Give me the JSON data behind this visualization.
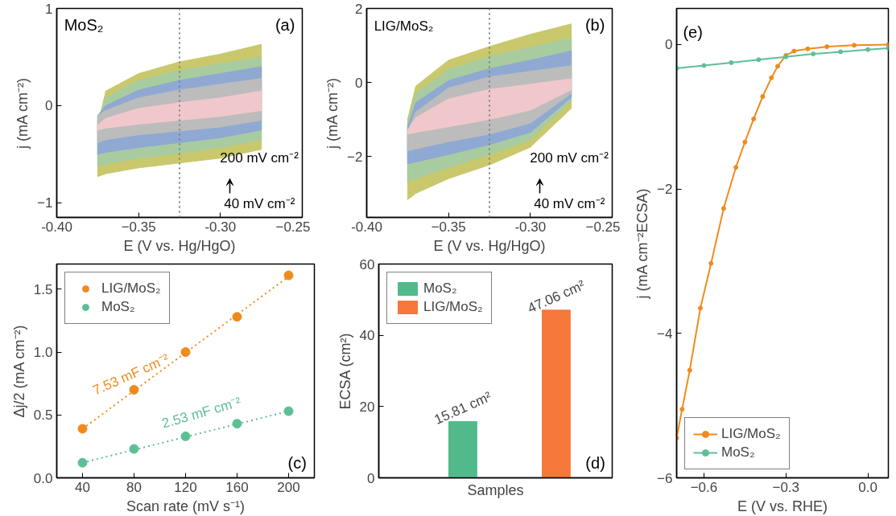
{
  "chart_data": [
    {
      "type": "area",
      "xlabel": "E (V vs. Hg/HgO)",
      "ylabel": "j (mA cm⁻²)",
      "xlim": [
        -0.4,
        -0.25
      ],
      "ylim": [
        -1.15,
        1
      ],
      "xticks": [
        {
          "value": -0.4,
          "label": "-0.40"
        },
        -0.35,
        {
          "value": -0.3,
          "label": "-0.30"
        },
        -0.25
      ],
      "yticks": [
        -1,
        0,
        1
      ],
      "series": [
        {
          "color": "#c9c86c",
          "x": [
            -0.375,
            -0.37,
            -0.35,
            -0.325,
            -0.3,
            -0.275,
            -0.275,
            -0.3,
            -0.325,
            -0.35,
            -0.37,
            -0.375
          ],
          "values": [
            -0.2,
            0.15,
            0.33,
            0.45,
            0.53,
            0.63,
            -0.45,
            -0.54,
            -0.59,
            -0.64,
            -0.7,
            -0.73
          ]
        },
        {
          "color": "#a9cba0",
          "x": [
            -0.375,
            -0.37,
            -0.35,
            -0.325,
            -0.3,
            -0.275,
            -0.275,
            -0.3,
            -0.325,
            -0.35,
            -0.37,
            -0.375
          ],
          "values": [
            -0.15,
            0.08,
            0.26,
            0.36,
            0.43,
            0.5,
            -0.35,
            -0.43,
            -0.49,
            -0.54,
            -0.6,
            -0.62
          ]
        },
        {
          "color": "#8fa9d3",
          "x": [
            -0.375,
            -0.37,
            -0.35,
            -0.325,
            -0.3,
            -0.275,
            -0.275,
            -0.3,
            -0.325,
            -0.35,
            -0.37,
            -0.375
          ],
          "values": [
            -0.1,
            0.0,
            0.16,
            0.26,
            0.33,
            0.4,
            -0.25,
            -0.33,
            -0.38,
            -0.43,
            -0.48,
            -0.5
          ]
        },
        {
          "color": "#bcbcbc",
          "x": [
            -0.375,
            -0.37,
            -0.35,
            -0.325,
            -0.3,
            -0.275,
            -0.275,
            -0.3,
            -0.325,
            -0.35,
            -0.37,
            -0.375
          ],
          "values": [
            -0.1,
            -0.05,
            0.08,
            0.16,
            0.22,
            0.28,
            -0.15,
            -0.22,
            -0.26,
            -0.3,
            -0.35,
            -0.38
          ]
        },
        {
          "color": "#f0c8cc",
          "x": [
            -0.375,
            -0.37,
            -0.35,
            -0.325,
            -0.3,
            -0.275,
            -0.275,
            -0.3,
            -0.325,
            -0.35,
            -0.37,
            -0.375
          ],
          "values": [
            -0.2,
            -0.13,
            -0.03,
            0.03,
            0.08,
            0.15,
            -0.05,
            -0.11,
            -0.15,
            -0.19,
            -0.23,
            -0.25
          ]
        }
      ],
      "ref_lines": [
        {
          "axis": "x",
          "value": -0.325,
          "color": "#808080",
          "line_style": "dotted"
        }
      ],
      "annotations": [
        "MoS₂",
        "(a)",
        "200 mV cm⁻²",
        "40 mV cm⁻²"
      ]
    },
    {
      "type": "area",
      "xlabel": "E (V vs. Hg/HgO)",
      "ylabel": "j (mA cm⁻²)",
      "xlim": [
        -0.4,
        -0.25
      ],
      "ylim": [
        -3.65,
        2
      ],
      "xticks": [
        {
          "value": -0.4,
          "label": "-0.40"
        },
        -0.35,
        {
          "value": -0.3,
          "label": "-0.30"
        },
        -0.25
      ],
      "yticks": [
        -2,
        0,
        2
      ],
      "series": [
        {
          "color": "#c9c86c",
          "x": [
            -0.375,
            -0.37,
            -0.35,
            -0.325,
            -0.3,
            -0.275,
            -0.275,
            -0.3,
            -0.325,
            -0.35,
            -0.37,
            -0.375
          ],
          "values": [
            -1.0,
            -0.1,
            0.6,
            0.97,
            1.3,
            1.58,
            -0.7,
            -1.75,
            -2.23,
            -2.6,
            -3.0,
            -3.17
          ]
        },
        {
          "color": "#a9cba0",
          "x": [
            -0.375,
            -0.37,
            -0.35,
            -0.325,
            -0.3,
            -0.275,
            -0.275,
            -0.3,
            -0.325,
            -0.35,
            -0.37,
            -0.375
          ],
          "values": [
            -1.1,
            -0.3,
            0.35,
            0.7,
            0.95,
            1.2,
            -0.5,
            -1.55,
            -1.95,
            -2.3,
            -2.6,
            -2.7
          ]
        },
        {
          "color": "#8fa9d3",
          "x": [
            -0.375,
            -0.37,
            -0.35,
            -0.325,
            -0.3,
            -0.275,
            -0.275,
            -0.3,
            -0.325,
            -0.35,
            -0.37,
            -0.375
          ],
          "values": [
            -1.2,
            -0.55,
            0.05,
            0.37,
            0.6,
            0.85,
            -0.4,
            -1.35,
            -1.68,
            -1.95,
            -2.15,
            -2.2
          ]
        },
        {
          "color": "#bcbcbc",
          "x": [
            -0.375,
            -0.37,
            -0.35,
            -0.325,
            -0.3,
            -0.275,
            -0.275,
            -0.3,
            -0.325,
            -0.35,
            -0.37,
            -0.375
          ],
          "values": [
            -1.3,
            -0.8,
            -0.15,
            0.15,
            0.3,
            0.45,
            -0.3,
            -1.1,
            -1.4,
            -1.6,
            -1.8,
            -1.85
          ]
        },
        {
          "color": "#f0c8cc",
          "x": [
            -0.375,
            -0.37,
            -0.35,
            -0.325,
            -0.3,
            -0.275,
            -0.275,
            -0.3,
            -0.325,
            -0.35,
            -0.37,
            -0.375
          ],
          "values": [
            -1.3,
            -0.95,
            -0.45,
            -0.19,
            -0.05,
            0.1,
            -0.2,
            -0.75,
            -1.0,
            -1.2,
            -1.35,
            -1.4
          ]
        }
      ],
      "ref_lines": [
        {
          "axis": "x",
          "value": -0.325,
          "color": "#808080",
          "line_style": "dotted"
        }
      ],
      "annotations": [
        "LIG/MoS₂",
        "(b)",
        "200 mV cm⁻²",
        "40 mV cm⁻²"
      ]
    },
    {
      "type": "scatter",
      "xlabel": "Scan rate (mV s⁻¹)",
      "ylabel": "Δj/2 (mA cm⁻²)",
      "xlim": [
        20,
        220
      ],
      "ylim": [
        0,
        1.7
      ],
      "xticks": [
        40,
        80,
        120,
        160,
        200
      ],
      "yticks": [
        {
          "value": 0,
          "label": "0.0"
        },
        0.5,
        {
          "value": 1,
          "label": "1.0"
        },
        1.5
      ],
      "x": [
        40,
        80,
        120,
        160,
        200
      ],
      "legend": "top left",
      "series": [
        {
          "name": "LIG/MoS₂",
          "color": "#f08a1c",
          "values": [
            0.39,
            0.7,
            1.0,
            1.28,
            1.61
          ]
        },
        {
          "name": "MoS₂",
          "color": "#5dbf95",
          "values": [
            0.12,
            0.23,
            0.33,
            0.43,
            0.53
          ]
        },
        {
          "type": "line",
          "line_style": "dotted",
          "color": "#f08a1c",
          "x": [
            40,
            200
          ],
          "values": [
            0.39,
            1.6
          ]
        },
        {
          "type": "line",
          "line_style": "dotted",
          "color": "#5dbf95",
          "x": [
            40,
            200
          ],
          "values": [
            0.12,
            0.53
          ]
        }
      ],
      "annotations": [
        "7.53 mF cm⁻²",
        "2.53 mF cm⁻²",
        "(c)"
      ]
    },
    {
      "type": "bar",
      "xlabel": "Samples",
      "ylabel": "ECSA (cm²)",
      "ylim": [
        0,
        60
      ],
      "yticks": [
        0,
        20,
        40,
        60
      ],
      "categories": [
        null,
        null
      ],
      "legend": "top left",
      "stacked": true,
      "series": [
        {
          "name": "MoS₂",
          "color": "#52b98a",
          "values": [
            15.81,
            null
          ],
          "value_labels": [
            "15.81 cm²",
            null
          ]
        },
        {
          "name": "LIG/MoS₂",
          "color": "#f4793a",
          "values": [
            null,
            47.06
          ],
          "value_labels": [
            null,
            "47.06 cm²"
          ]
        }
      ],
      "annotations": [
        "(d)"
      ]
    },
    {
      "type": "line",
      "xlabel": "E (V vs. RHE)",
      "ylabel": "j (mA cm⁻²ECSA)",
      "xlim": [
        -0.7,
        0.075
      ],
      "ylim": [
        -6,
        0.5
      ],
      "xticks": [
        -0.6,
        -0.3,
        {
          "value": 0,
          "label": "0.0"
        }
      ],
      "yticks": [
        -6,
        -4,
        -2,
        0
      ],
      "marker": "circle",
      "legend": "bottom left",
      "series": [
        {
          "name": "LIG/MoS₂",
          "color": "#f08a1c",
          "x": [
            -0.7,
            -0.68,
            -0.652,
            -0.613,
            -0.574,
            -0.528,
            -0.483,
            -0.45,
            -0.418,
            -0.385,
            -0.353,
            -0.33,
            -0.3,
            -0.27,
            -0.22,
            -0.15,
            -0.05,
            0.075
          ],
          "values": [
            -5.45,
            -5.05,
            -4.51,
            -3.65,
            -3.03,
            -2.27,
            -1.7,
            -1.35,
            -1.03,
            -0.72,
            -0.46,
            -0.3,
            -0.15,
            -0.09,
            -0.06,
            -0.03,
            -0.01,
            0.0
          ]
        },
        {
          "name": "MoS₂",
          "color": "#5dbf95",
          "x": [
            -0.7,
            -0.6,
            -0.5,
            -0.4,
            -0.3,
            -0.2,
            -0.1,
            0.0,
            0.075
          ],
          "values": [
            -0.33,
            -0.29,
            -0.25,
            -0.21,
            -0.17,
            -0.13,
            -0.1,
            -0.07,
            -0.05
          ]
        }
      ],
      "annotations": [
        "(e)"
      ]
    }
  ]
}
